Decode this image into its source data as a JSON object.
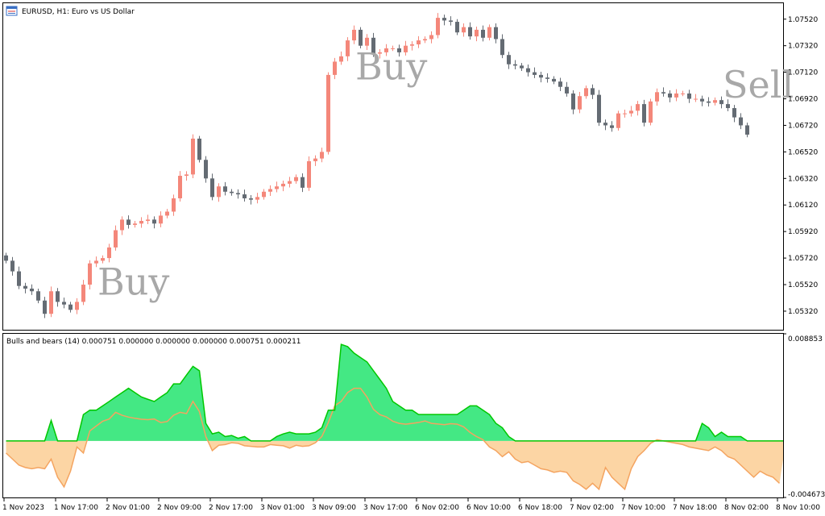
{
  "symbol_title": "EURUSD, H1:  Euro vs US Dollar",
  "indicator_title": "Bulls and bears (14) 0.000751 0.000000 0.000000 0.000000 0.000751 0.000211",
  "annotations": [
    {
      "text": "Buy",
      "bar": 15
    },
    {
      "text": "Buy",
      "bar": 55
    },
    {
      "text": "Sell",
      "bar": 112
    }
  ],
  "colors": {
    "bull_candle": "#f4877a",
    "bear_candle": "#646b73",
    "bull_area": "#44e884",
    "bear_area": "#fcd5a4",
    "bull_line": "#00c800",
    "bear_line": "#f4a460",
    "annotation": "#a8a8a8"
  },
  "chart_data": [
    {
      "type": "candlestick",
      "title": "EURUSD, H1:  Euro vs US Dollar",
      "ylim": [
        1.0518,
        1.0764
      ],
      "y_ticks": [
        "1.07520",
        "1.07320",
        "1.07120",
        "1.06920",
        "1.06720",
        "1.06520",
        "1.06320",
        "1.06120",
        "1.05920",
        "1.05720",
        "1.05520",
        "1.05320"
      ],
      "x_ticks": [
        "1 Nov 2023",
        "1 Nov 17:00",
        "2 Nov 01:00",
        "2 Nov 09:00",
        "2 Nov 17:00",
        "3 Nov 01:00",
        "3 Nov 09:00",
        "3 Nov 17:00",
        "6 Nov 02:00",
        "6 Nov 10:00",
        "6 Nov 18:00",
        "7 Nov 02:00",
        "7 Nov 10:00",
        "7 Nov 18:00",
        "8 Nov 02:00",
        "8 Nov 10:00"
      ],
      "x_tick_bars": [
        0,
        8,
        16,
        24,
        32,
        40,
        48,
        56,
        64,
        72,
        80,
        88,
        96,
        104,
        112,
        120
      ],
      "close": [
        1.057,
        1.0562,
        1.0551,
        1.0549,
        1.0547,
        1.054,
        1.053,
        1.0547,
        1.0539,
        1.0537,
        1.0533,
        1.0539,
        1.0552,
        1.0568,
        1.057,
        1.0572,
        1.058,
        1.0593,
        1.0601,
        1.0597,
        1.0598,
        1.06,
        1.0601,
        1.0598,
        1.0604,
        1.0607,
        1.0617,
        1.0634,
        1.0635,
        1.0662,
        1.0646,
        1.0632,
        1.0618,
        1.0626,
        1.0622,
        1.0621,
        1.062,
        1.0617,
        1.0616,
        1.0618,
        1.0622,
        1.0624,
        1.0626,
        1.0628,
        1.063,
        1.0633,
        1.0625,
        1.0645,
        1.0647,
        1.0652,
        1.071,
        1.072,
        1.0724,
        1.0736,
        1.0744,
        1.0732,
        1.0738,
        1.0726,
        1.0727,
        1.073,
        1.073,
        1.0727,
        1.0732,
        1.0733,
        1.0736,
        1.0737,
        1.074,
        1.0753,
        1.0751,
        1.075,
        1.0742,
        1.0746,
        1.0739,
        1.0744,
        1.0738,
        1.0746,
        1.0737,
        1.0725,
        1.0718,
        1.0717,
        1.0715,
        1.0712,
        1.071,
        1.0708,
        1.0707,
        1.0705,
        1.0701,
        1.0696,
        1.0684,
        1.0694,
        1.07,
        1.0695,
        1.0674,
        1.0672,
        1.067,
        1.0681,
        1.0681,
        1.0683,
        1.0688,
        1.0674,
        1.069,
        1.0697,
        1.0696,
        1.0693,
        1.0696,
        1.0696,
        1.0692,
        1.0692,
        1.069,
        1.0689,
        1.0691,
        1.0688,
        1.0685,
        1.0678,
        1.0672,
        1.0665
      ]
    },
    {
      "type": "area",
      "title": "Bulls and bears (14)",
      "ylim": [
        -0.004673,
        0.008853
      ],
      "y_ticks": [
        "0.008853",
        "-0.004673"
      ],
      "x_ticks": [
        "1 Nov 2023",
        "1 Nov 17:00",
        "2 Nov 01:00",
        "2 Nov 09:00",
        "2 Nov 17:00",
        "3 Nov 01:00",
        "3 Nov 09:00",
        "3 Nov 17:00",
        "6 Nov 02:00",
        "6 Nov 10:00",
        "6 Nov 18:00",
        "7 Nov 02:00",
        "7 Nov 10:00",
        "7 Nov 18:00",
        "8 Nov 02:00",
        "8 Nov 10:00"
      ],
      "series": [
        {
          "name": "Bulls",
          "values": [
            0.0,
            0.0,
            0.0,
            0.0,
            0.0,
            0.0,
            0.0,
            0.00169,
            0.0,
            0.0,
            0.0,
            0.0,
            0.00218,
            0.00254,
            0.00254,
            0.0029,
            0.00326,
            0.00363,
            0.00399,
            0.00435,
            0.00399,
            0.00363,
            0.00344,
            0.00326,
            0.00363,
            0.00399,
            0.00471,
            0.00471,
            0.00544,
            0.00616,
            0.0058,
            0.00145,
            0.00058,
            0.00072,
            0.00036,
            0.00045,
            0.00022,
            0.00036,
            0.0,
            0.0,
            0.0,
            0.0,
            0.00036,
            0.00058,
            0.00072,
            0.00058,
            0.00058,
            0.00058,
            0.00072,
            0.00109,
            0.00254,
            0.00254,
            0.00798,
            0.00779,
            0.00725,
            0.00689,
            0.00653,
            0.0058,
            0.00508,
            0.00435,
            0.00326,
            0.0029,
            0.00254,
            0.00254,
            0.00218,
            0.00218,
            0.00218,
            0.00218,
            0.00218,
            0.00218,
            0.00218,
            0.00254,
            0.0029,
            0.0029,
            0.00254,
            0.00218,
            0.00145,
            0.00109,
            0.00036,
            0.0,
            0.0,
            0.0,
            0.0,
            0.0,
            0.0,
            0.0,
            0.0,
            0.0,
            0.0,
            0.0,
            0.0,
            0.0,
            0.0,
            0.0,
            0.0,
            0.0,
            0.0,
            0.0,
            0.0,
            0.0,
            0.0,
            0.0,
            0.0,
            0.0,
            0.0,
            0.0,
            0.0,
            0.0,
            0.00145,
            0.00109,
            0.00036,
            0.00072,
            0.00036,
            0.00036,
            0.00036,
            0.0,
            0.0,
            0.0,
            0.0,
            0.0,
            0.0,
            0.0
          ]
        },
        {
          "name": "Bears",
          "values": [
            -0.001,
            -0.0015,
            -0.002,
            -0.0022,
            -0.0023,
            -0.0022,
            -0.0023,
            -0.0015,
            -0.003,
            -0.0038,
            -0.0025,
            -0.0005,
            -0.001,
            0.00083,
            0.00123,
            0.00163,
            0.00181,
            0.00236,
            0.00212,
            0.00197,
            0.00187,
            0.00179,
            0.00176,
            0.00181,
            0.00152,
            0.0016,
            0.00212,
            0.00236,
            0.00226,
            0.00327,
            0.00243,
            0.00036,
            -0.0008,
            -0.00036,
            -0.0003,
            -0.00015,
            -0.0002,
            -0.0004,
            -0.00045,
            -0.0005,
            -0.0005,
            -0.0003,
            -0.00036,
            -0.0004,
            -0.0006,
            -0.00036,
            -0.00045,
            -0.0004,
            -0.00015,
            0.00036,
            0.00152,
            0.0029,
            0.00327,
            0.004,
            0.00435,
            0.00435,
            0.00363,
            0.00261,
            0.00217,
            0.00199,
            0.00163,
            0.00145,
            0.00138,
            0.00145,
            0.00152,
            0.00165,
            0.00145,
            0.0014,
            0.00134,
            0.00142,
            0.00138,
            0.00116,
            0.0007,
            0.00036,
            0.0001,
            -0.0005,
            -0.0008,
            -0.0013,
            -0.0009,
            -0.0015,
            -0.0018,
            -0.0017,
            -0.002,
            -0.0023,
            -0.0024,
            -0.0026,
            -0.0025,
            -0.0026,
            -0.0033,
            -0.0036,
            -0.004,
            -0.0035,
            -0.004,
            -0.0022,
            -0.003,
            -0.0035,
            -0.004,
            -0.0023,
            -0.0013,
            -0.0008,
            -0.0002,
            0.0001,
            0.0,
            -0.0001,
            -0.0002,
            -0.0003,
            -0.0005,
            -0.0006,
            -0.0007,
            -0.0008,
            -0.0005,
            -0.0008,
            -0.0013,
            -0.0015,
            -0.002,
            -0.0025,
            -0.003,
            -0.0025,
            -0.0028,
            -0.003,
            -0.0035
          ]
        }
      ]
    }
  ]
}
